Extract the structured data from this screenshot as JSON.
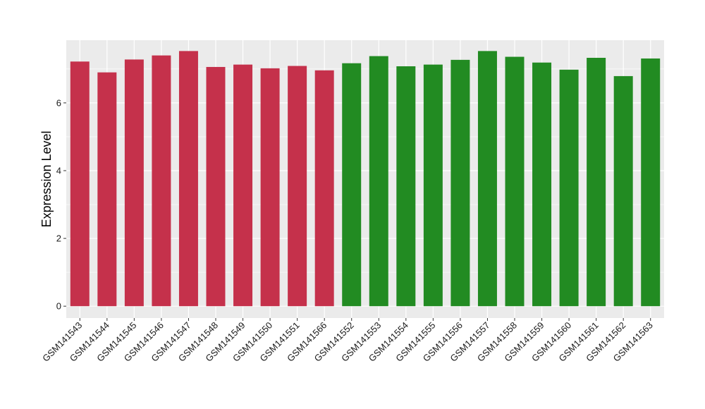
{
  "chart_data": {
    "type": "bar",
    "title": "",
    "xlabel": "",
    "ylabel": "Expression Level",
    "ylim": [
      -0.35,
      7.85
    ],
    "yticks": [
      0,
      2,
      4,
      6
    ],
    "ytick_labels": [
      "0",
      "2",
      "4",
      "6"
    ],
    "grid": true,
    "legend": "none",
    "panel_background": "#ebebeb",
    "grid_color": "#ffffff",
    "categories": [
      "GSM141543",
      "GSM141544",
      "GSM141545",
      "GSM141546",
      "GSM141547",
      "GSM141548",
      "GSM141549",
      "GSM141550",
      "GSM141551",
      "GSM141566",
      "GSM141552",
      "GSM141553",
      "GSM141554",
      "GSM141555",
      "GSM141556",
      "GSM141557",
      "GSM141558",
      "GSM141559",
      "GSM141560",
      "GSM141561",
      "GSM141562",
      "GSM141563"
    ],
    "values": [
      7.22,
      6.9,
      7.28,
      7.4,
      7.53,
      7.06,
      7.13,
      7.02,
      7.09,
      6.96,
      7.17,
      7.38,
      7.08,
      7.13,
      7.27,
      7.53,
      7.36,
      7.19,
      6.98,
      7.33,
      6.79,
      7.31
    ],
    "bar_colors": [
      "#c5314b",
      "#c5314b",
      "#c5314b",
      "#c5314b",
      "#c5314b",
      "#c5314b",
      "#c5314b",
      "#c5314b",
      "#c5314b",
      "#c5314b",
      "#228b22",
      "#228b22",
      "#228b22",
      "#228b22",
      "#228b22",
      "#228b22",
      "#228b22",
      "#228b22",
      "#228b22",
      "#228b22",
      "#228b22",
      "#228b22"
    ]
  }
}
